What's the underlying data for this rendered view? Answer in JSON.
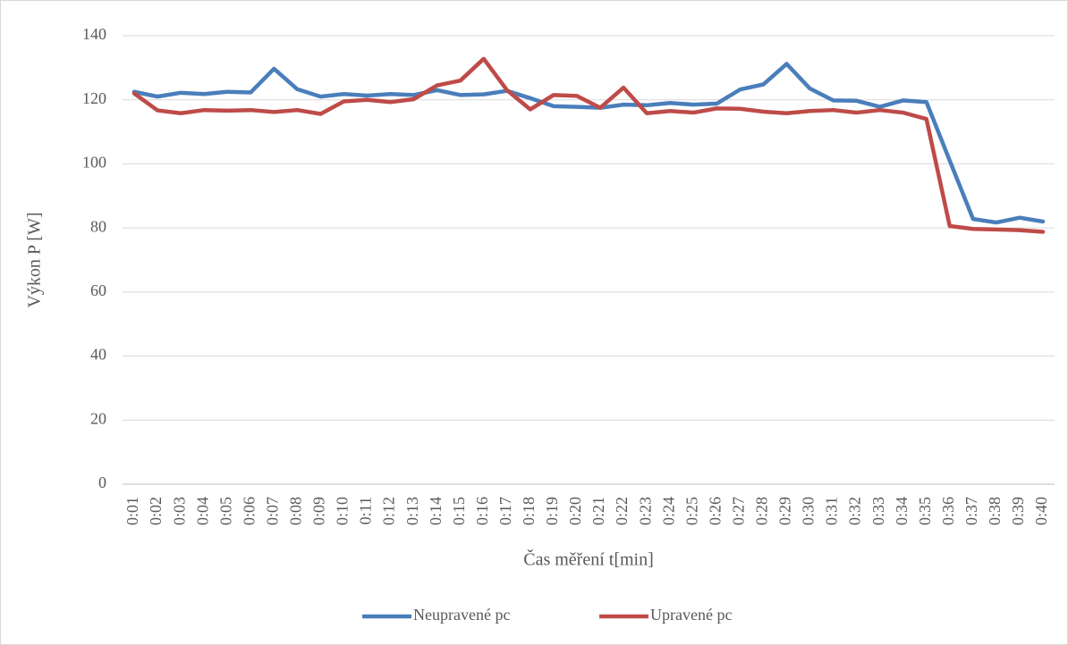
{
  "chart_data": {
    "type": "line",
    "xlabel": "Čas měření t[min]",
    "ylabel": "Výkon P [W]",
    "categories": [
      "0:01",
      "0:02",
      "0:03",
      "0:04",
      "0:05",
      "0:06",
      "0:07",
      "0:08",
      "0:09",
      "0:10",
      "0:11",
      "0:12",
      "0:13",
      "0:14",
      "0:15",
      "0:16",
      "0:17",
      "0:18",
      "0:19",
      "0:20",
      "0:21",
      "0:22",
      "0:23",
      "0:24",
      "0:25",
      "0:26",
      "0:27",
      "0:28",
      "0:29",
      "0:30",
      "0:31",
      "0:32",
      "0:33",
      "0:34",
      "0:35",
      "0:36",
      "0:37",
      "0:38",
      "0:39",
      "0:40"
    ],
    "series": [
      {
        "name": "Neupravené pc",
        "color": "#4a7ebb",
        "values": [
          122.5,
          121,
          122.2,
          121.8,
          122.5,
          122.3,
          129.7,
          123.3,
          121,
          121.8,
          121.3,
          121.8,
          121.5,
          123,
          121.5,
          121.7,
          122.8,
          120.5,
          118,
          117.8,
          117.5,
          118.5,
          118.3,
          119,
          118.5,
          118.8,
          123.2,
          124.8,
          131.2,
          123.5,
          119.8,
          119.7,
          117.8,
          119.8,
          119.3,
          101,
          82.8,
          81.7,
          83.2,
          82
        ]
      },
      {
        "name": "Upravené pc",
        "color": "#be4b48",
        "values": [
          122,
          116.7,
          115.8,
          116.8,
          116.6,
          116.8,
          116.2,
          116.8,
          115.6,
          119.5,
          120,
          119.3,
          120.2,
          124.5,
          126,
          132.8,
          123,
          117,
          121.5,
          121.2,
          117.5,
          123.8,
          115.8,
          116.5,
          116,
          117.3,
          117.2,
          116.3,
          115.8,
          116.5,
          116.8,
          116,
          116.8,
          116,
          114,
          80.6,
          79.7,
          79.5,
          79.3,
          78.8
        ]
      }
    ],
    "ylim": [
      0,
      140
    ],
    "yticks": [
      0,
      20,
      40,
      60,
      80,
      100,
      120,
      140
    ],
    "grid": true,
    "legend": "bottom"
  }
}
